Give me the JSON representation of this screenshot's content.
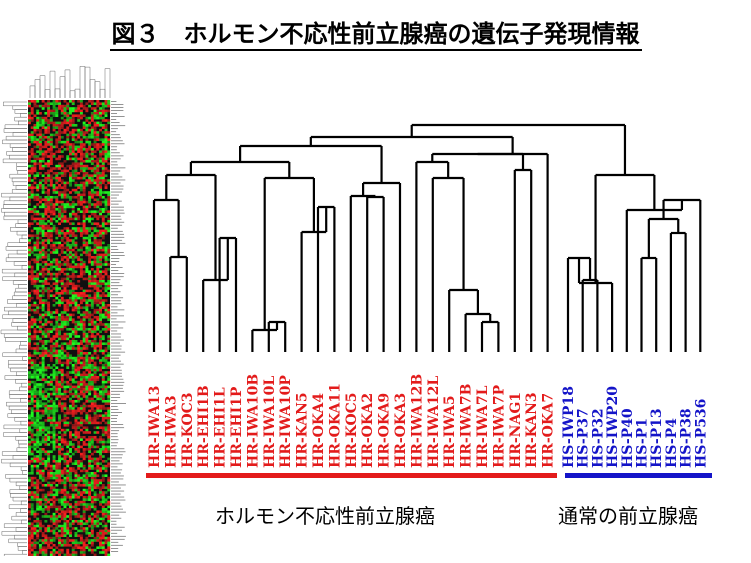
{
  "title": "図３　ホルモン不応性前立腺癌の遺伝子発現情報",
  "samples": {
    "hr": [
      "HR-IWA13",
      "HR-IWA3",
      "HR-KOC3",
      "HR-EHI1B",
      "HR-EHI1L",
      "HR-EHI1P",
      "HR-IWA10B",
      "HR-IWA10L",
      "HR-IWA10P",
      "HR-KAN5",
      "HR-OKA4",
      "HR-OKA11",
      "HR-KOC5",
      "HR-OKA2",
      "HR-OKA9",
      "HR-OKA3",
      "HR-IWA12B",
      "HR-IWA12L",
      "HR-IWA5",
      "HR-IWA7B",
      "HR-IWA7L",
      "HR-IWA7P",
      "HR-NAG1",
      "HR-KAN3",
      "HR-OKA7"
    ],
    "hs": [
      "HS-IWP18",
      "HS-P37",
      "HS-P32",
      "HS-IWP20",
      "HS-P40",
      "HS-P1",
      "HS-P13",
      "HS-P4",
      "HS-P38",
      "HS-P536"
    ]
  },
  "groups": {
    "hr_label": "ホルモン不応性前立腺癌",
    "hs_label": "通常の前立腺癌"
  },
  "colors": {
    "hr": "#e31b1b",
    "hs": "#1414c8",
    "heatmap_up": "#ff2020",
    "heatmap_down": "#20ff20"
  }
}
